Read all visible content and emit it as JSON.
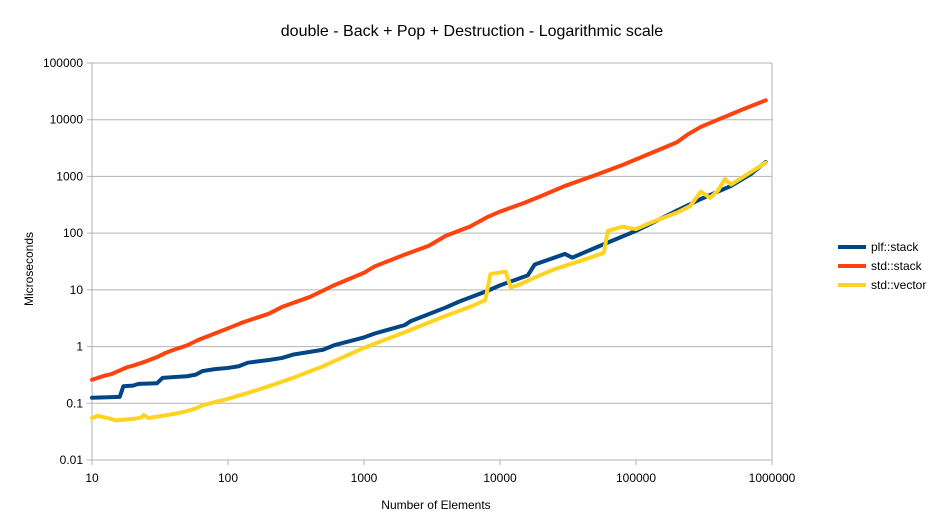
{
  "chart_data": {
    "type": "line",
    "title": "double - Back + Pop + Destruction - Logarithmic scale",
    "xlabel": "Number of Elements",
    "ylabel": "Microseconds",
    "x_scale": "log",
    "y_scale": "log",
    "xlim": [
      10,
      1000000
    ],
    "ylim": [
      0.01,
      100000
    ],
    "x_ticks": [
      "10",
      "100",
      "1000",
      "10000",
      "100000",
      "1000000"
    ],
    "y_ticks": [
      "0.01",
      "0.1",
      "1",
      "10",
      "100",
      "1000",
      "10000",
      "100000"
    ],
    "grid": "horizontal",
    "legend": "right",
    "series": [
      {
        "name": "plf::stack",
        "color": "#004586",
        "points": [
          [
            10,
            0.125
          ],
          [
            16,
            0.13
          ],
          [
            17,
            0.2
          ],
          [
            20,
            0.205
          ],
          [
            22,
            0.22
          ],
          [
            30,
            0.225
          ],
          [
            33,
            0.28
          ],
          [
            40,
            0.29
          ],
          [
            50,
            0.3
          ],
          [
            58,
            0.32
          ],
          [
            65,
            0.37
          ],
          [
            80,
            0.4
          ],
          [
            100,
            0.42
          ],
          [
            120,
            0.45
          ],
          [
            140,
            0.52
          ],
          [
            200,
            0.58
          ],
          [
            250,
            0.63
          ],
          [
            300,
            0.72
          ],
          [
            500,
            0.88
          ],
          [
            600,
            1.05
          ],
          [
            1000,
            1.45
          ],
          [
            1200,
            1.7
          ],
          [
            2000,
            2.4
          ],
          [
            2200,
            2.8
          ],
          [
            4000,
            4.9
          ],
          [
            5000,
            6.2
          ],
          [
            8000,
            9.5
          ],
          [
            10000,
            12
          ],
          [
            16000,
            18
          ],
          [
            18000,
            28
          ],
          [
            30000,
            43
          ],
          [
            34000,
            37
          ],
          [
            50000,
            55
          ],
          [
            100000,
            110
          ],
          [
            120000,
            135
          ],
          [
            200000,
            250
          ],
          [
            300000,
            400
          ],
          [
            500000,
            680
          ],
          [
            700000,
            1100
          ],
          [
            900000,
            1800
          ]
        ]
      },
      {
        "name": "std::stack",
        "color": "#ff420e",
        "points": [
          [
            10,
            0.26
          ],
          [
            12,
            0.3
          ],
          [
            14,
            0.33
          ],
          [
            16,
            0.38
          ],
          [
            18,
            0.43
          ],
          [
            20,
            0.46
          ],
          [
            25,
            0.55
          ],
          [
            30,
            0.65
          ],
          [
            35,
            0.78
          ],
          [
            40,
            0.88
          ],
          [
            50,
            1.05
          ],
          [
            60,
            1.3
          ],
          [
            80,
            1.7
          ],
          [
            100,
            2.1
          ],
          [
            130,
            2.7
          ],
          [
            200,
            3.8
          ],
          [
            250,
            5
          ],
          [
            400,
            7.5
          ],
          [
            600,
            12
          ],
          [
            1000,
            20
          ],
          [
            1200,
            26
          ],
          [
            2000,
            42
          ],
          [
            3000,
            60
          ],
          [
            4000,
            90
          ],
          [
            6000,
            130
          ],
          [
            8000,
            190
          ],
          [
            10000,
            240
          ],
          [
            15000,
            340
          ],
          [
            20000,
            450
          ],
          [
            30000,
            680
          ],
          [
            50000,
            1050
          ],
          [
            80000,
            1600
          ],
          [
            100000,
            2000
          ],
          [
            150000,
            3000
          ],
          [
            200000,
            4000
          ],
          [
            240000,
            5500
          ],
          [
            300000,
            7500
          ],
          [
            400000,
            10000
          ],
          [
            500000,
            12500
          ],
          [
            600000,
            15000
          ],
          [
            900000,
            22000
          ]
        ]
      },
      {
        "name": "std::vector",
        "color": "#ffd320",
        "points": [
          [
            10,
            0.055
          ],
          [
            11,
            0.06
          ],
          [
            13,
            0.055
          ],
          [
            15,
            0.05
          ],
          [
            20,
            0.053
          ],
          [
            23,
            0.056
          ],
          [
            24,
            0.062
          ],
          [
            26,
            0.055
          ],
          [
            30,
            0.058
          ],
          [
            40,
            0.065
          ],
          [
            50,
            0.073
          ],
          [
            57,
            0.08
          ],
          [
            65,
            0.092
          ],
          [
            80,
            0.105
          ],
          [
            100,
            0.12
          ],
          [
            150,
            0.16
          ],
          [
            200,
            0.2
          ],
          [
            300,
            0.28
          ],
          [
            500,
            0.45
          ],
          [
            700,
            0.65
          ],
          [
            1000,
            0.95
          ],
          [
            2000,
            1.8
          ],
          [
            4000,
            3.5
          ],
          [
            6000,
            5
          ],
          [
            7800,
            6.6
          ],
          [
            8500,
            19
          ],
          [
            11000,
            21
          ],
          [
            12000,
            11
          ],
          [
            14000,
            12.5
          ],
          [
            17000,
            15.5
          ],
          [
            25000,
            23
          ],
          [
            40000,
            33
          ],
          [
            58000,
            45
          ],
          [
            62000,
            110
          ],
          [
            80000,
            130
          ],
          [
            90000,
            122
          ],
          [
            100000,
            118
          ],
          [
            130000,
            155
          ],
          [
            200000,
            230
          ],
          [
            250000,
            300
          ],
          [
            300000,
            540
          ],
          [
            350000,
            420
          ],
          [
            400000,
            560
          ],
          [
            450000,
            900
          ],
          [
            500000,
            720
          ],
          [
            900000,
            1750
          ]
        ]
      }
    ]
  }
}
